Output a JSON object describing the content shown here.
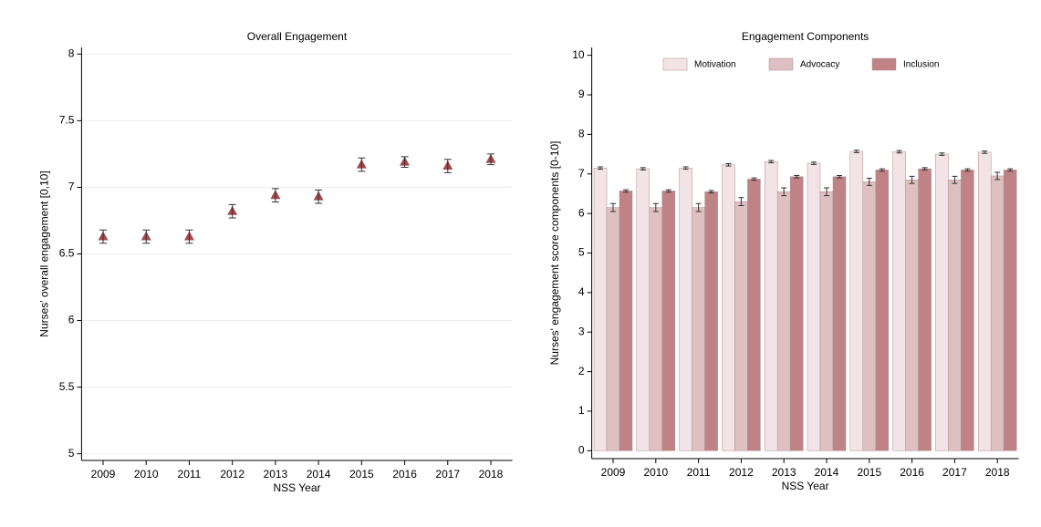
{
  "chart_data": [
    {
      "type": "point",
      "title": "Overall Engagement",
      "xlabel": "NSS Year",
      "ylabel": "Nurses' overall engagement [0,10]",
      "categories": [
        "2009",
        "2010",
        "2011",
        "2012",
        "2013",
        "2014",
        "2015",
        "2016",
        "2017",
        "2018"
      ],
      "series": [
        {
          "color": "#a4494f",
          "values": [
            6.63,
            6.63,
            6.63,
            6.82,
            6.94,
            6.93,
            7.17,
            7.19,
            7.16,
            7.21
          ],
          "errors": [
            0.05,
            0.05,
            0.05,
            0.05,
            0.05,
            0.05,
            0.05,
            0.04,
            0.05,
            0.04
          ]
        }
      ],
      "ylim": [
        4.95,
        8.05
      ],
      "yticks": [
        5,
        5.5,
        6,
        6.5,
        7,
        7.5,
        8
      ],
      "grid": true
    },
    {
      "type": "bar",
      "title": "Engagement Components",
      "xlabel": "NSS Year",
      "ylabel": "Nurses' engagement score components [0-10]",
      "categories": [
        "2009",
        "2010",
        "2011",
        "2012",
        "2013",
        "2014",
        "2015",
        "2016",
        "2017",
        "2018"
      ],
      "series": [
        {
          "name": "Motivation",
          "color": "#f2e4e6",
          "values": [
            7.15,
            7.13,
            7.15,
            7.23,
            7.31,
            7.27,
            7.57,
            7.56,
            7.5,
            7.55
          ],
          "errors": [
            0.03,
            0.03,
            0.03,
            0.03,
            0.03,
            0.03,
            0.03,
            0.03,
            0.03,
            0.03
          ]
        },
        {
          "name": "Advocacy",
          "color": "#dfc0c2",
          "values": [
            6.15,
            6.15,
            6.15,
            6.3,
            6.55,
            6.55,
            6.8,
            6.85,
            6.85,
            6.95
          ],
          "errors": [
            0.1,
            0.1,
            0.1,
            0.1,
            0.1,
            0.1,
            0.09,
            0.09,
            0.09,
            0.09
          ]
        },
        {
          "name": "Inclusion",
          "color": "#bf8386",
          "values": [
            6.57,
            6.57,
            6.55,
            6.87,
            6.93,
            6.93,
            7.1,
            7.13,
            7.1,
            7.1
          ],
          "errors": [
            0.03,
            0.03,
            0.03,
            0.03,
            0.03,
            0.03,
            0.03,
            0.03,
            0.03,
            0.03
          ]
        }
      ],
      "ylim": [
        -0.2,
        10.2
      ],
      "yticks": [
        0,
        1,
        2,
        3,
        4,
        5,
        6,
        7,
        8,
        9,
        10
      ],
      "grid": false,
      "legend": "top"
    }
  ]
}
